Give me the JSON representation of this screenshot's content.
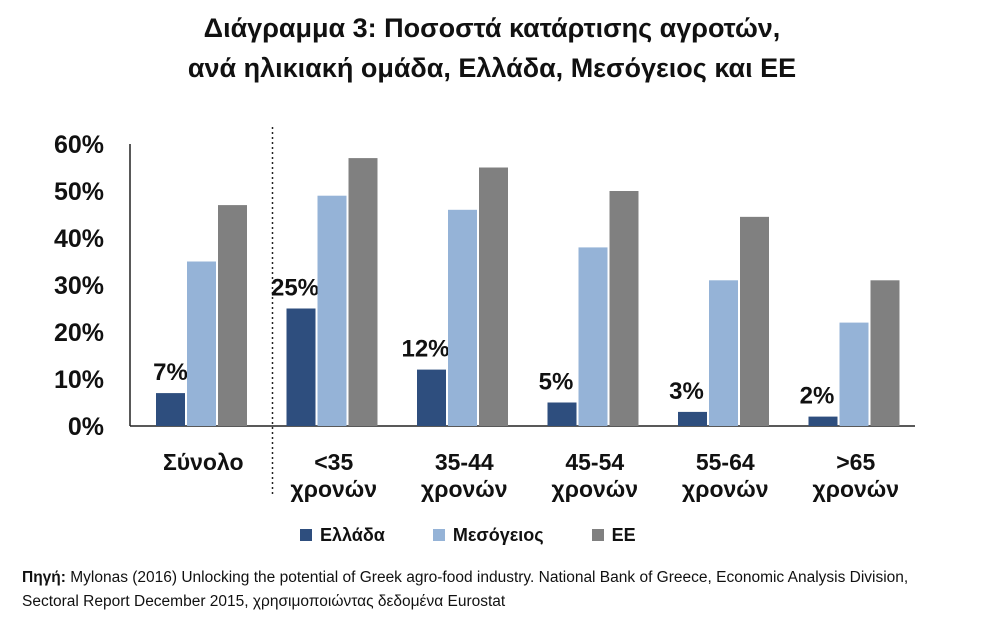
{
  "title_line1": "Διάγραμμα 3: Ποσοστά κατάρτισης αγροτών,",
  "title_line2": "ανά ηλικιακή ομάδα, Ελλάδα, Μεσόγειος και ΕΕ",
  "source_prefix": "Πηγή:",
  "source_text": " Mylonas (2016) Unlocking the potential of Greek agro-food industry. National Bank of Greece, Economic Analysis Division, Sectoral Report December 2015, χρησιμοποιώντας δεδομένα Eurostat",
  "colors": {
    "greece": "#2e4e7e",
    "mediterranean": "#95b3d7",
    "eu": "#808080"
  },
  "chart_data": {
    "type": "bar",
    "title": "Διάγραμμα 3: Ποσοστά κατάρτισης αγροτών, ανά ηλικιακή ομάδα, Ελλάδα, Μεσόγειος και ΕΕ",
    "categories": [
      [
        "Σύνολο"
      ],
      [
        "<35",
        "χρονών"
      ],
      [
        "35-44",
        "χρονών"
      ],
      [
        "45-54",
        "χρονών"
      ],
      [
        "55-64",
        "χρονών"
      ],
      [
        ">65",
        "χρονών"
      ]
    ],
    "series": [
      {
        "name": "Ελλάδα",
        "values": [
          7,
          25,
          12,
          5,
          3,
          2
        ],
        "labels": [
          "7%",
          "25%",
          "12%",
          "5%",
          "3%",
          "2%"
        ]
      },
      {
        "name": "Μεσόγειος",
        "values": [
          35,
          49,
          46,
          38,
          31,
          22
        ]
      },
      {
        "name": "ΕΕ",
        "values": [
          47,
          57,
          55,
          50,
          44.5,
          31
        ]
      }
    ],
    "ylim": [
      0,
      60
    ],
    "yticks": [
      0,
      10,
      20,
      30,
      40,
      50,
      60
    ],
    "ytick_labels": [
      "0%",
      "10%",
      "20%",
      "30%",
      "40%",
      "50%",
      "60%"
    ],
    "xlabel": "",
    "ylabel": "",
    "legend_position": "bottom",
    "grid": false,
    "separator_after_first_category": true
  }
}
